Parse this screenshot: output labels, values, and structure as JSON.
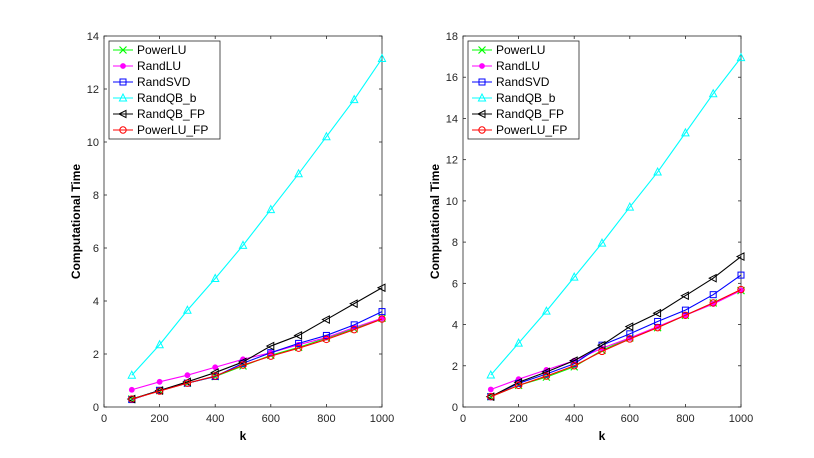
{
  "chart_data": [
    {
      "type": "line",
      "title": "",
      "xlabel": "k",
      "ylabel": "Computational Time",
      "xlim": [
        0,
        1000
      ],
      "ylim": [
        0,
        14
      ],
      "xticks": [
        0,
        200,
        400,
        600,
        800,
        1000
      ],
      "yticks": [
        0,
        2,
        4,
        6,
        8,
        10,
        12,
        14
      ],
      "grid": false,
      "legend_position": "top-left",
      "x": [
        100,
        200,
        300,
        400,
        500,
        600,
        700,
        800,
        900,
        1000
      ],
      "series": [
        {
          "name": "PowerLU",
          "color": "#00ff00",
          "marker": "x",
          "values": [
            0.3,
            0.62,
            0.9,
            1.15,
            1.55,
            1.95,
            2.25,
            2.6,
            2.95,
            3.35
          ]
        },
        {
          "name": "RandLU",
          "color": "#ff00ff",
          "marker": "dot",
          "values": [
            0.65,
            0.95,
            1.2,
            1.5,
            1.8,
            2.05,
            2.35,
            2.62,
            3.0,
            3.35
          ]
        },
        {
          "name": "RandSVD",
          "color": "#0000ff",
          "marker": "square",
          "values": [
            0.28,
            0.63,
            0.9,
            1.15,
            1.65,
            2.05,
            2.4,
            2.7,
            3.1,
            3.6
          ]
        },
        {
          "name": "RandQB_b",
          "color": "#00ffff",
          "marker": "triangle-up",
          "values": [
            1.2,
            2.35,
            3.65,
            4.85,
            6.1,
            7.45,
            8.8,
            10.2,
            11.6,
            13.15
          ]
        },
        {
          "name": "RandQB_FP",
          "color": "#000000",
          "marker": "triangle-left",
          "values": [
            0.3,
            0.62,
            0.95,
            1.3,
            1.7,
            2.3,
            2.7,
            3.3,
            3.9,
            4.5
          ]
        },
        {
          "name": "PowerLU_FP",
          "color": "#ff0000",
          "marker": "circle",
          "values": [
            0.3,
            0.6,
            0.9,
            1.17,
            1.58,
            1.92,
            2.22,
            2.55,
            2.92,
            3.32
          ]
        }
      ]
    },
    {
      "type": "line",
      "title": "",
      "xlabel": "k",
      "ylabel": "Computational Time",
      "xlim": [
        0,
        1000
      ],
      "ylim": [
        0,
        18
      ],
      "xticks": [
        0,
        200,
        400,
        600,
        800,
        1000
      ],
      "yticks": [
        0,
        2,
        4,
        6,
        8,
        10,
        12,
        14,
        16,
        18
      ],
      "grid": false,
      "legend_position": "top-left",
      "x": [
        100,
        200,
        300,
        400,
        500,
        600,
        700,
        800,
        900,
        1000
      ],
      "series": [
        {
          "name": "PowerLU",
          "color": "#00ff00",
          "marker": "x",
          "values": [
            0.5,
            1.05,
            1.45,
            1.95,
            2.75,
            3.35,
            3.85,
            4.45,
            5.05,
            5.65
          ]
        },
        {
          "name": "RandLU",
          "color": "#ff00ff",
          "marker": "dot",
          "values": [
            0.85,
            1.35,
            1.8,
            2.25,
            2.85,
            3.35,
            3.9,
            4.45,
            5.0,
            5.65
          ]
        },
        {
          "name": "RandSVD",
          "color": "#0000ff",
          "marker": "square",
          "values": [
            0.5,
            1.15,
            1.6,
            2.1,
            3.0,
            3.55,
            4.15,
            4.7,
            5.45,
            6.4
          ]
        },
        {
          "name": "RandQB_b",
          "color": "#00ffff",
          "marker": "triangle-up",
          "values": [
            1.55,
            3.1,
            4.65,
            6.3,
            7.95,
            9.7,
            11.4,
            13.3,
            15.2,
            16.95
          ]
        },
        {
          "name": "RandQB_FP",
          "color": "#000000",
          "marker": "triangle-left",
          "values": [
            0.5,
            1.2,
            1.7,
            2.25,
            3.0,
            3.9,
            4.55,
            5.4,
            6.25,
            7.3
          ]
        },
        {
          "name": "PowerLU_FP",
          "color": "#ff0000",
          "marker": "circle",
          "values": [
            0.5,
            1.05,
            1.5,
            2.0,
            2.7,
            3.3,
            3.85,
            4.45,
            5.05,
            5.7
          ]
        }
      ]
    }
  ]
}
